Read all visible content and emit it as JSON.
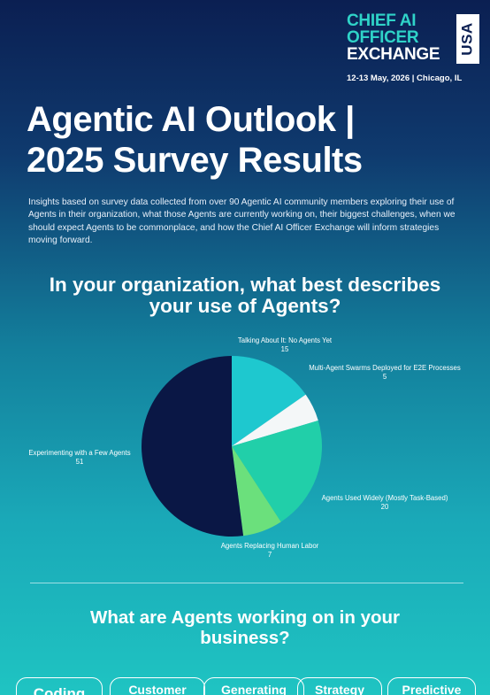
{
  "logo": {
    "line1": "CHIEF AI",
    "line2": "OFFICER",
    "line3": "EXCHANGE",
    "badge": "USA",
    "event": "12-13 May, 2026 | Chicago, IL"
  },
  "title": {
    "line1": "Agentic AI Outlook |",
    "line2": "2025 Survey Results"
  },
  "intro": "Insights based on survey data collected from over 90 Agentic AI community members exploring their use of Agents in their organization, what those Agents are currently working on, their biggest challenges, when we should expect Agents to be commonplace, and how the Chief AI Officer Exchange will inform strategies moving forward.",
  "question1": {
    "line1": "In your organization, what best describes",
    "line2": "your use of Agents?"
  },
  "chart_data": {
    "type": "pie",
    "slices": [
      {
        "label": "Talking About It: No Agents Yet",
        "value": 15,
        "color": "#1ec8cf"
      },
      {
        "label": "Multi-Agent Swarms Deployed for E2E Processes",
        "value": 5,
        "color": "#f4f7f8"
      },
      {
        "label": "Agents Used Widely (Mostly Task-Based)",
        "value": 20,
        "color": "#21cfa9"
      },
      {
        "label": "Agents Replacing Human Labor",
        "value": 7,
        "color": "#6be07c"
      },
      {
        "label": "Experimenting with a Few Agents",
        "value": 51,
        "color": "#0a1745"
      }
    ],
    "display_values": [
      "15",
      "5",
      "20",
      "7",
      "51"
    ]
  },
  "question2": {
    "line1": "What are Agents working on in your",
    "line2": "business?"
  },
  "tags": [
    "Coding",
    "Customer",
    "Generating",
    "Strategy",
    "Predictive"
  ]
}
